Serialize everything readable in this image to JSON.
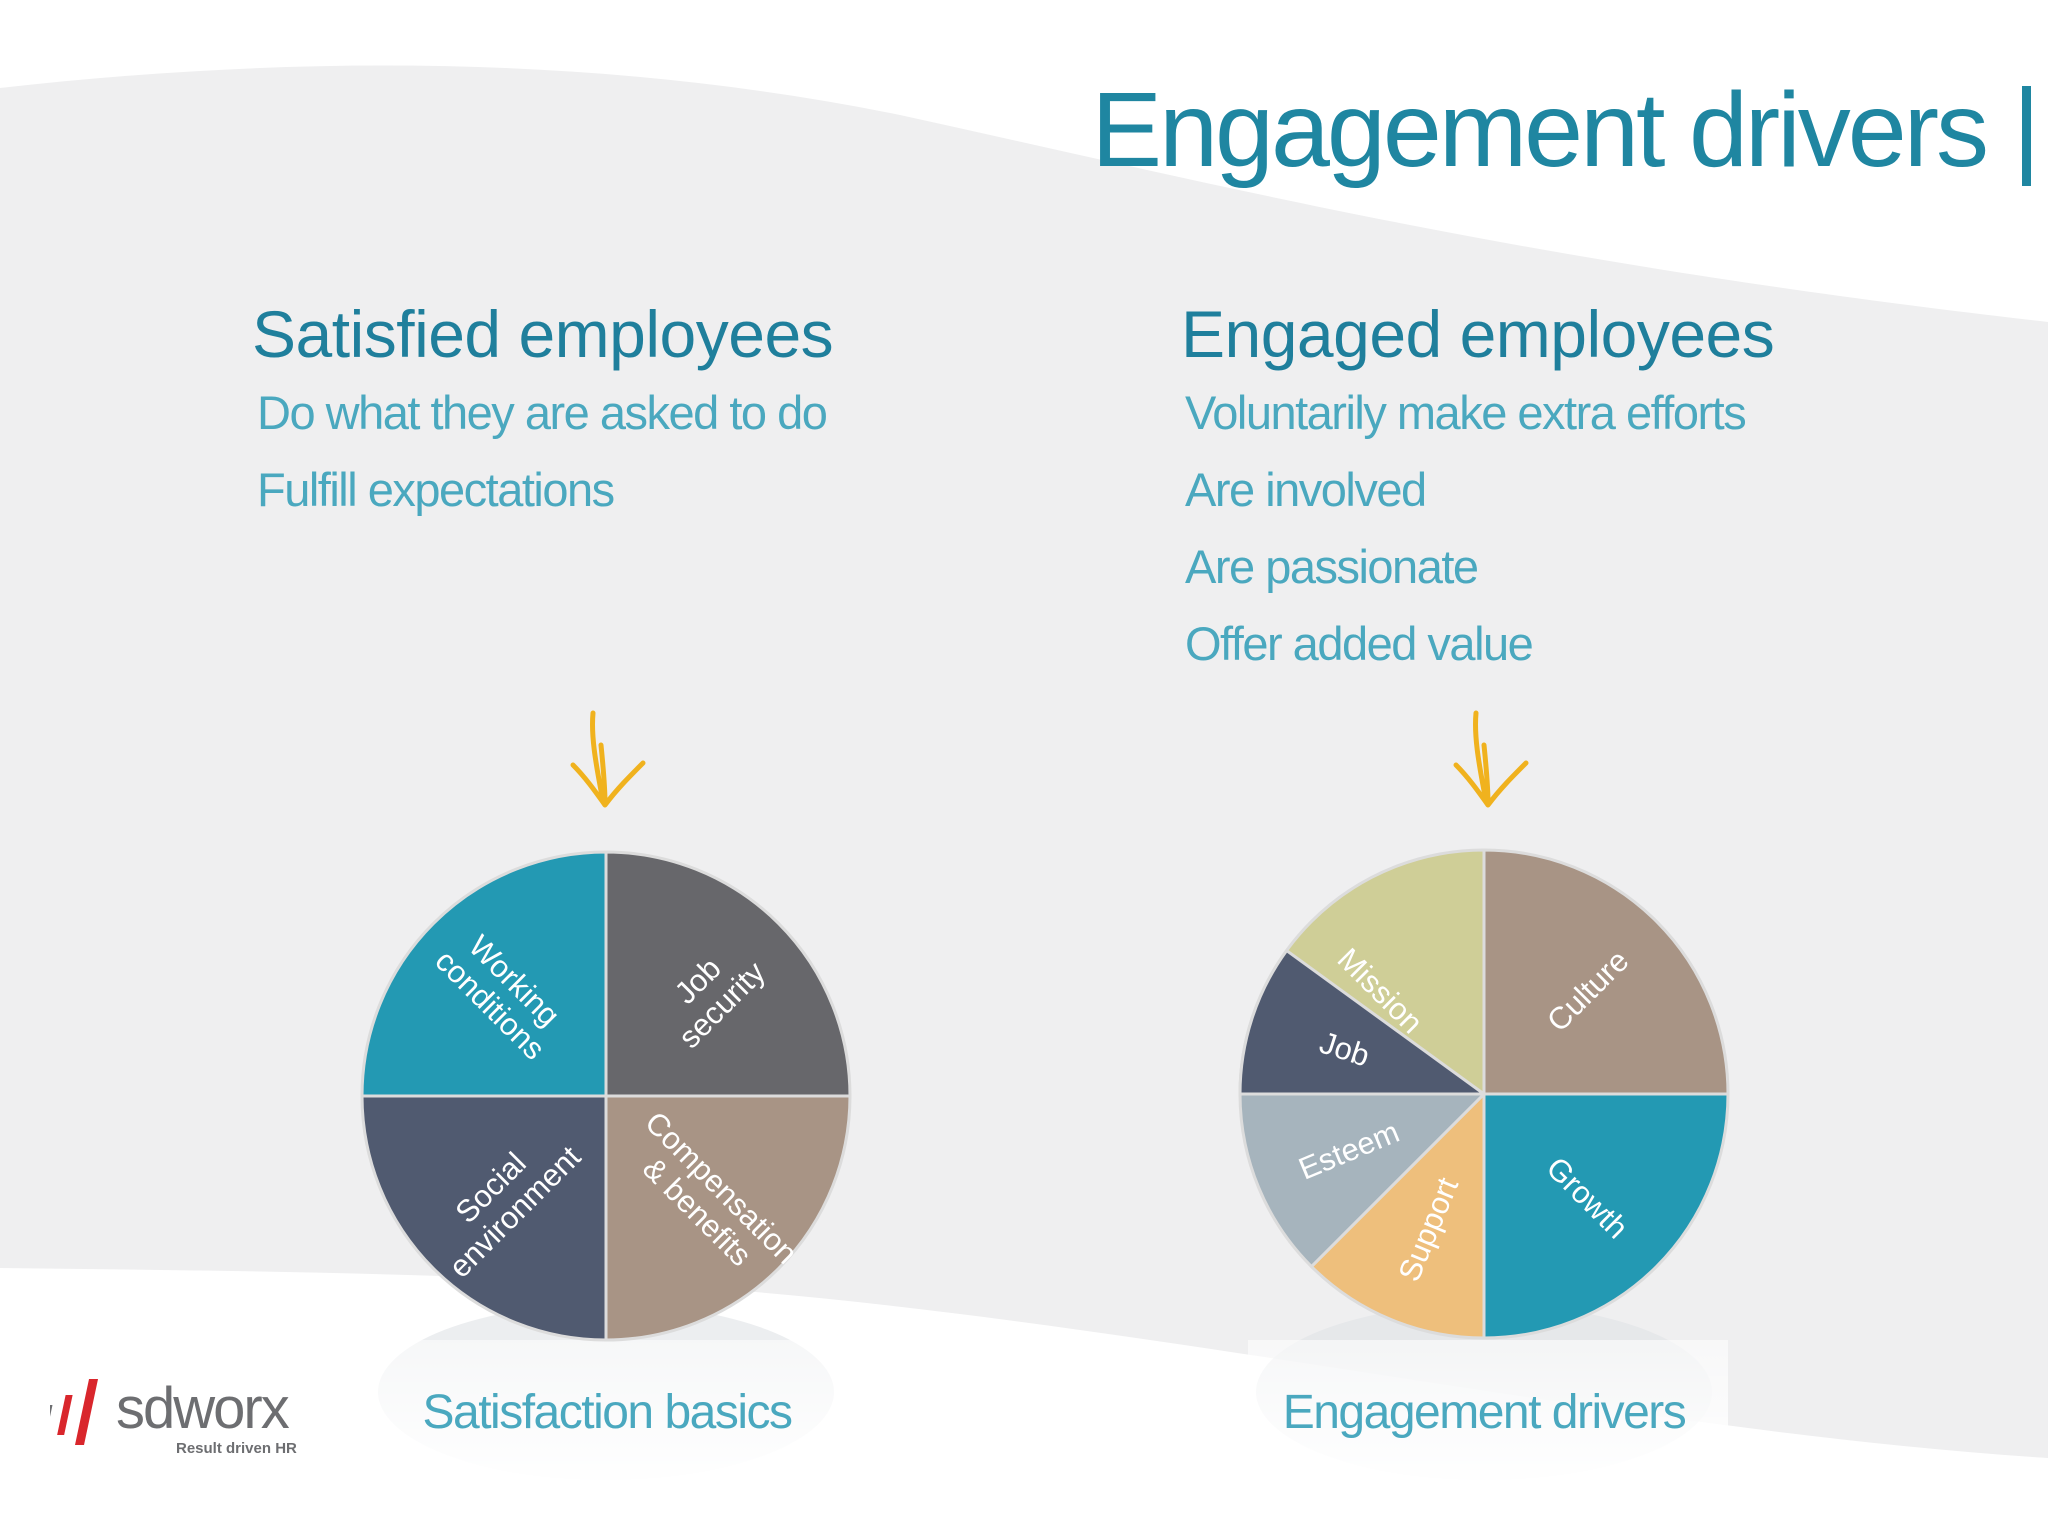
{
  "slide": {
    "title": "Engagement drivers"
  },
  "left": {
    "heading": "Satisfied employees",
    "points": [
      "Do what they are asked to do",
      "Fulfill expectations"
    ],
    "caption": "Satisfaction basics",
    "segments": [
      {
        "lines": [
          "Working",
          "conditions"
        ],
        "color": "#2399b3"
      },
      {
        "lines": [
          "Job",
          "security"
        ],
        "color": "#67676b"
      },
      {
        "lines": [
          "Compensation",
          "& benefits"
        ],
        "color": "#a89485"
      },
      {
        "lines": [
          "Social",
          "environment"
        ],
        "color": "#505a70"
      }
    ]
  },
  "right": {
    "heading": "Engaged employees",
    "points": [
      "Voluntarily make extra efforts",
      "Are involved",
      "Are passionate",
      "Offer added value"
    ],
    "caption": "Engagement drivers",
    "segments": [
      {
        "lines": [
          "Mission"
        ],
        "color": "#cfce97"
      },
      {
        "lines": [
          "Culture"
        ],
        "color": "#a89485"
      },
      {
        "lines": [
          "Growth"
        ],
        "color": "#2399b3"
      },
      {
        "lines": [
          "Support"
        ],
        "color": "#eebf7c"
      },
      {
        "lines": [
          "Esteem"
        ],
        "color": "#a6b4bd"
      },
      {
        "lines": [
          "Job"
        ],
        "color": "#505a70"
      }
    ]
  },
  "logo": {
    "brand": "sdworx",
    "tagline": "Result driven HR"
  },
  "colors": {
    "accent": "#1f86a1",
    "arrow": "#f0b21e",
    "logo_red": "#d9262c",
    "logo_gray": "#6d6e71"
  }
}
